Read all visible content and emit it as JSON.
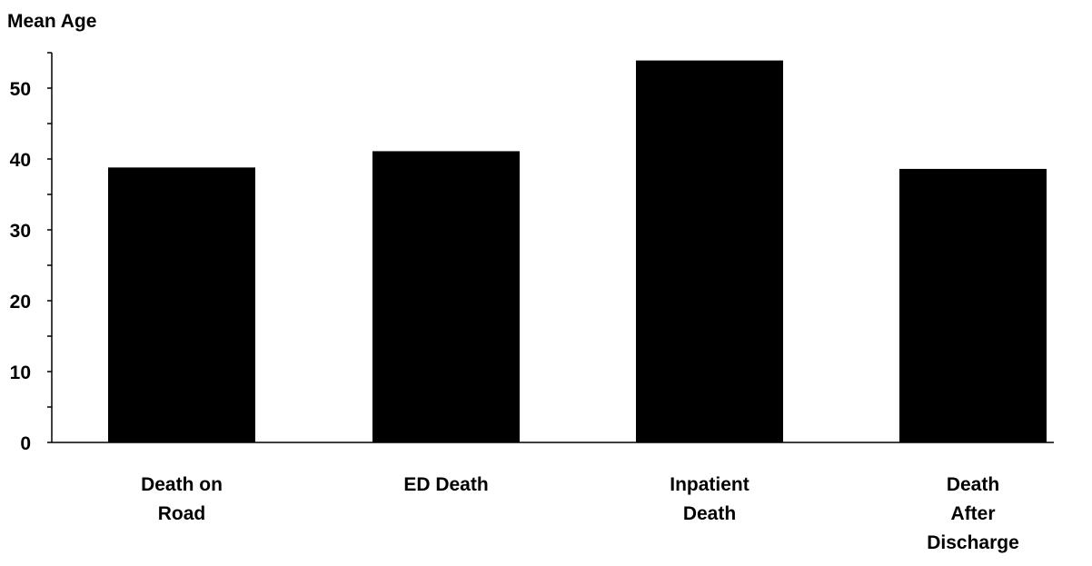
{
  "chart_data": {
    "type": "bar",
    "title": "",
    "xlabel": "",
    "ylabel": "Mean Age",
    "categories": [
      [
        "Death on",
        "Road"
      ],
      [
        "ED Death"
      ],
      [
        "Inpatient",
        "Death"
      ],
      [
        "Death",
        "After",
        "Discharge"
      ]
    ],
    "values": [
      38.8,
      41.1,
      53.9,
      38.6
    ],
    "ylim": [
      0,
      55
    ],
    "yticks": [
      0,
      10,
      20,
      30,
      40,
      50
    ],
    "yticks_minor": [
      5,
      15,
      25,
      35,
      45,
      55
    ],
    "bar_color": "#000000",
    "axis_color": "#000000",
    "grid": false,
    "legend": "none"
  }
}
